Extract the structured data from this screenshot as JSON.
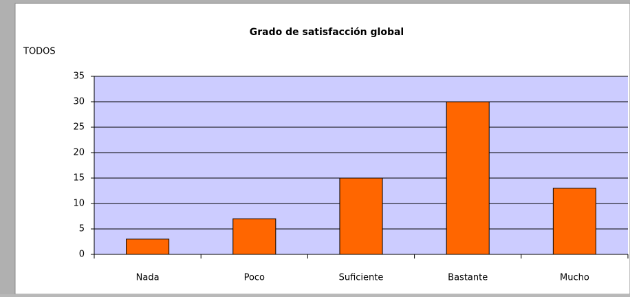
{
  "chart_data": {
    "type": "bar",
    "title": "Grado de satisfacción global",
    "subtitle": "TODOS",
    "categories": [
      "Nada",
      "Poco",
      "Suficiente",
      "Bastante",
      "Mucho"
    ],
    "values": [
      3,
      7,
      15,
      30,
      13
    ],
    "color": "#ff6600",
    "plot_background": "#ccccff",
    "ylim": [
      0,
      35
    ],
    "yticks": [
      0,
      5,
      10,
      15,
      20,
      25,
      30,
      35
    ],
    "grid": true
  }
}
